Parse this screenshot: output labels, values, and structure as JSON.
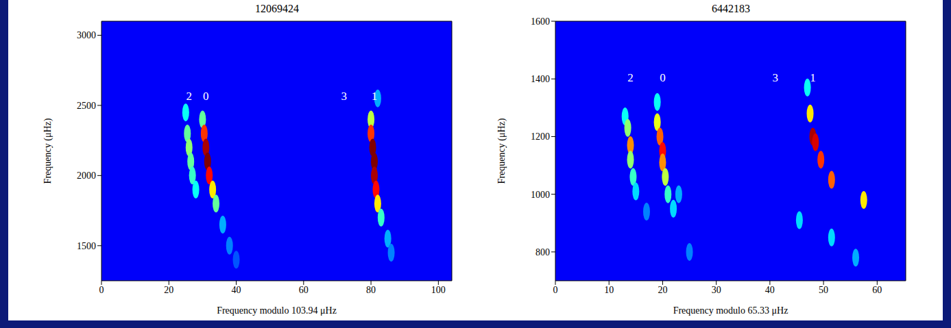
{
  "chart_data": [
    {
      "type": "heatmap",
      "title": "12069424",
      "x_label": "Frequency modulo 103.94 μHz",
      "y_label": "Frequency (μHz)",
      "xlim": [
        0,
        104
      ],
      "xticks": [
        0,
        20,
        40,
        60,
        80,
        100
      ],
      "ylim": [
        1250,
        3100
      ],
      "yticks": [
        1500,
        2000,
        2500,
        3000
      ],
      "value_range": [
        0,
        1
      ],
      "cells": {
        "x": [
          30,
          30.5,
          31,
          31.5,
          32,
          33,
          34,
          36,
          38,
          40,
          25,
          25.5,
          26,
          26.5,
          27,
          28,
          82,
          80,
          80,
          80.5,
          81,
          81,
          81.5,
          82,
          83,
          85,
          86
        ],
        "y": [
          2400,
          2300,
          2200,
          2100,
          2000,
          1900,
          1800,
          1650,
          1500,
          1400,
          2450,
          2300,
          2200,
          2100,
          2000,
          1900,
          2550,
          2400,
          2300,
          2200,
          2100,
          2000,
          1900,
          1800,
          1700,
          1550,
          1450
        ],
        "value": [
          0.4,
          0.8,
          0.95,
          1.0,
          0.85,
          0.6,
          0.4,
          0.2,
          0.15,
          0.1,
          0.3,
          0.4,
          0.45,
          0.4,
          0.35,
          0.3,
          0.2,
          0.5,
          0.8,
          1.0,
          1.0,
          0.95,
          0.85,
          0.6,
          0.35,
          0.2,
          0.15
        ]
      },
      "annotations": [
        {
          "text": "2",
          "x": 26,
          "y": 2560
        },
        {
          "text": "0",
          "x": 31,
          "y": 2560
        },
        {
          "text": "3",
          "x": 72,
          "y": 2560
        },
        {
          "text": "1",
          "x": 81,
          "y": 2560
        }
      ]
    },
    {
      "type": "heatmap",
      "title": "6442183",
      "x_label": "Frequency modulo 65.33 μHz",
      "y_label": "Frequency (μHz)",
      "xlim": [
        0,
        65.33
      ],
      "xticks": [
        0,
        10,
        20,
        30,
        40,
        50,
        60
      ],
      "ylim": [
        700,
        1600
      ],
      "yticks": [
        800,
        1000,
        1200,
        1400,
        1600
      ],
      "value_range": [
        0,
        1
      ],
      "cells": {
        "x": [
          13,
          13.5,
          14,
          14,
          14.5,
          15,
          17,
          19,
          19,
          19.5,
          20,
          20,
          20.5,
          21,
          22,
          23,
          25,
          47,
          47.5,
          48,
          48.5,
          49.5,
          51.5,
          51.5,
          57.5,
          45.5,
          56
        ],
        "y": [
          1270,
          1230,
          1170,
          1120,
          1060,
          1010,
          940,
          1320,
          1250,
          1200,
          1150,
          1110,
          1060,
          1000,
          950,
          1000,
          800,
          1370,
          1280,
          1200,
          1180,
          1120,
          1050,
          850,
          980,
          910,
          780
        ],
        "value": [
          0.3,
          0.45,
          0.7,
          0.45,
          0.35,
          0.25,
          0.15,
          0.3,
          0.55,
          0.75,
          0.85,
          0.7,
          0.5,
          0.35,
          0.25,
          0.2,
          0.15,
          0.3,
          0.6,
          0.95,
          0.9,
          0.8,
          0.75,
          0.25,
          0.6,
          0.25,
          0.2
        ]
      },
      "annotations": [
        {
          "text": "2",
          "x": 14,
          "y": 1400
        },
        {
          "text": "0",
          "x": 20,
          "y": 1400
        },
        {
          "text": "3",
          "x": 41,
          "y": 1400
        },
        {
          "text": "1",
          "x": 48,
          "y": 1400
        }
      ]
    }
  ]
}
